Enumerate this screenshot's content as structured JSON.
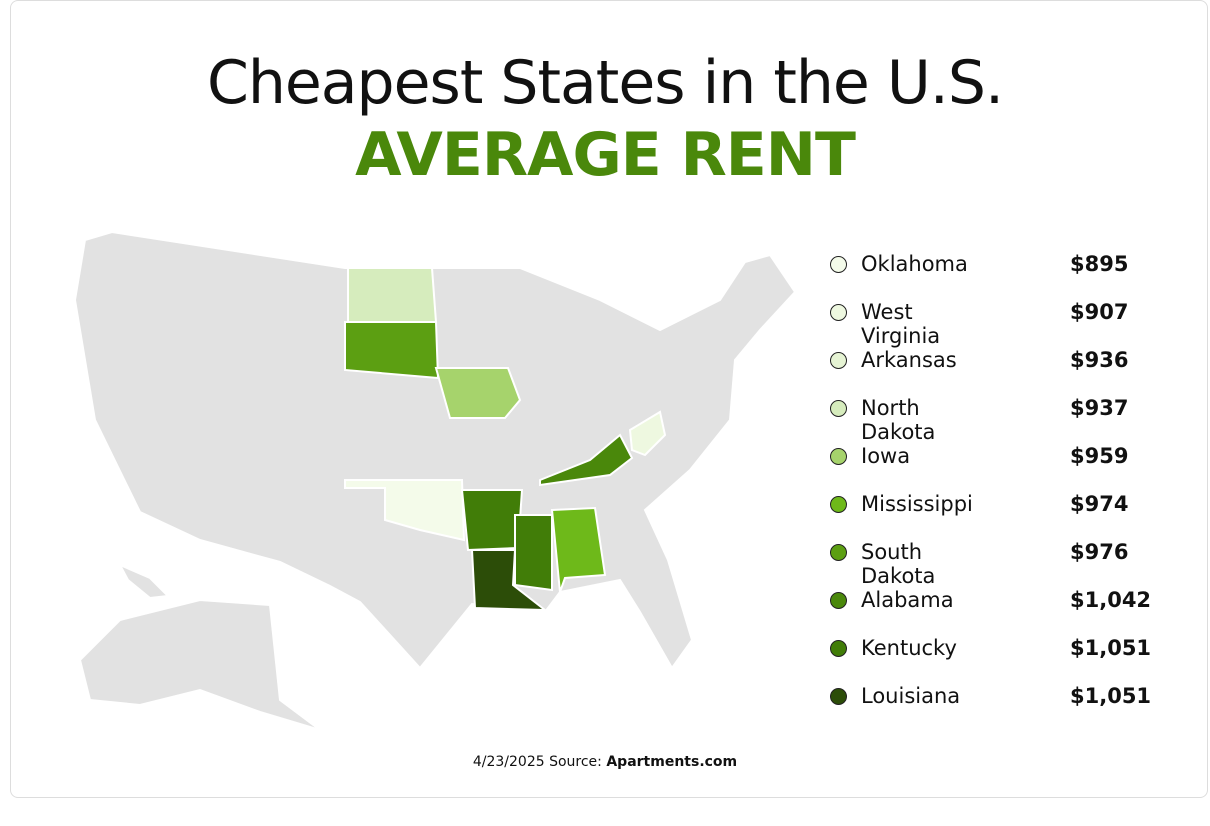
{
  "header": {
    "title": "Cheapest States in the U.S.",
    "subtitle": "AVERAGE RENT"
  },
  "legend": [
    {
      "state": "Oklahoma",
      "rent": "$895",
      "color": "#f4fbea"
    },
    {
      "state": "West Virginia",
      "rent": "$907",
      "color": "#eef8e0"
    },
    {
      "state": "Arkansas",
      "rent": "$936",
      "color": "#e6f4d4"
    },
    {
      "state": "North Dakota",
      "rent": "$937",
      "color": "#d6ecbd"
    },
    {
      "state": "Iowa",
      "rent": "$959",
      "color": "#a6d36c"
    },
    {
      "state": "Mississippi",
      "rent": "$974",
      "color": "#6eb91a"
    },
    {
      "state": "South Dakota",
      "rent": "$976",
      "color": "#5c9f12"
    },
    {
      "state": "Alabama",
      "rent": "$1,042",
      "color": "#4a880b"
    },
    {
      "state": "Kentucky",
      "rent": "$1,051",
      "color": "#417d08"
    },
    {
      "state": "Louisiana",
      "rent": "$1,051",
      "color": "#2c4d08"
    }
  ],
  "source": {
    "date": "4/23/2025 Source:",
    "name": "Apartments.com"
  }
}
